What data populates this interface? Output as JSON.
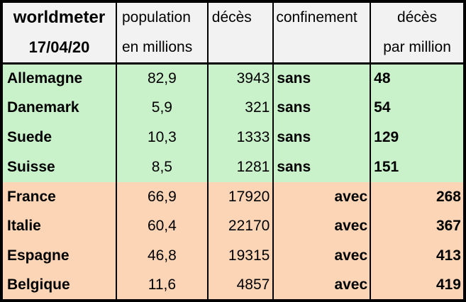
{
  "title": "worldmeter",
  "date": "17/04/20",
  "colors": {
    "header_bg": "#f2f2f2",
    "sans_row_bg": "#c9f2ca",
    "avec_row_bg": "#fbd5b5",
    "border": "#000000",
    "text": "#000000"
  },
  "header": {
    "col1": {
      "line1": "worldmeter",
      "line2": "17/04/20"
    },
    "col2": {
      "line1": "population",
      "line2": "en millions"
    },
    "col3": {
      "line1": "décès",
      "line2": ""
    },
    "col4": {
      "line1": "confinement",
      "line2": ""
    },
    "col5": {
      "line1": "décès",
      "line2": "par million"
    }
  },
  "rows": [
    {
      "country": "Allemagne",
      "population": "82,9",
      "deces": "3943",
      "confinement": "sans",
      "deces_par_million": "48"
    },
    {
      "country": "Danemark",
      "population": "5,9",
      "deces": "321",
      "confinement": "sans",
      "deces_par_million": "54"
    },
    {
      "country": "Suede",
      "population": "10,3",
      "deces": "1333",
      "confinement": "sans",
      "deces_par_million": "129"
    },
    {
      "country": "Suisse",
      "population": "8,5",
      "deces": "1281",
      "confinement": "sans",
      "deces_par_million": "151"
    },
    {
      "country": "France",
      "population": "66,9",
      "deces": "17920",
      "confinement": "avec",
      "deces_par_million": "268"
    },
    {
      "country": "Italie",
      "population": "60,4",
      "deces": "22170",
      "confinement": "avec",
      "deces_par_million": "367"
    },
    {
      "country": "Espagne",
      "population": "46,8",
      "deces": "19315",
      "confinement": "avec",
      "deces_par_million": "413"
    },
    {
      "country": "Belgique",
      "population": "11,6",
      "deces": "4857",
      "confinement": "avec",
      "deces_par_million": "419"
    }
  ],
  "chart_data": {
    "type": "table",
    "title": "worldmeter 17/04/20",
    "columns": [
      "worldmeter 17/04/20",
      "population en millions",
      "décès",
      "confinement",
      "décès par million"
    ],
    "rows": [
      [
        "Allemagne",
        82.9,
        3943,
        "sans",
        48
      ],
      [
        "Danemark",
        5.9,
        321,
        "sans",
        54
      ],
      [
        "Suede",
        10.3,
        1333,
        "sans",
        129
      ],
      [
        "Suisse",
        8.5,
        1281,
        "sans",
        151
      ],
      [
        "France",
        66.9,
        17920,
        "avec",
        268
      ],
      [
        "Italie",
        60.4,
        22170,
        "avec",
        367
      ],
      [
        "Espagne",
        46.8,
        19315,
        "avec",
        413
      ],
      [
        "Belgique",
        11.6,
        4857,
        "avec",
        419
      ]
    ],
    "layout_hints": {
      "group_sans_color": "#c9f2ca",
      "group_avec_color": "#fbd5b5",
      "header_color": "#f2f2f2"
    }
  }
}
